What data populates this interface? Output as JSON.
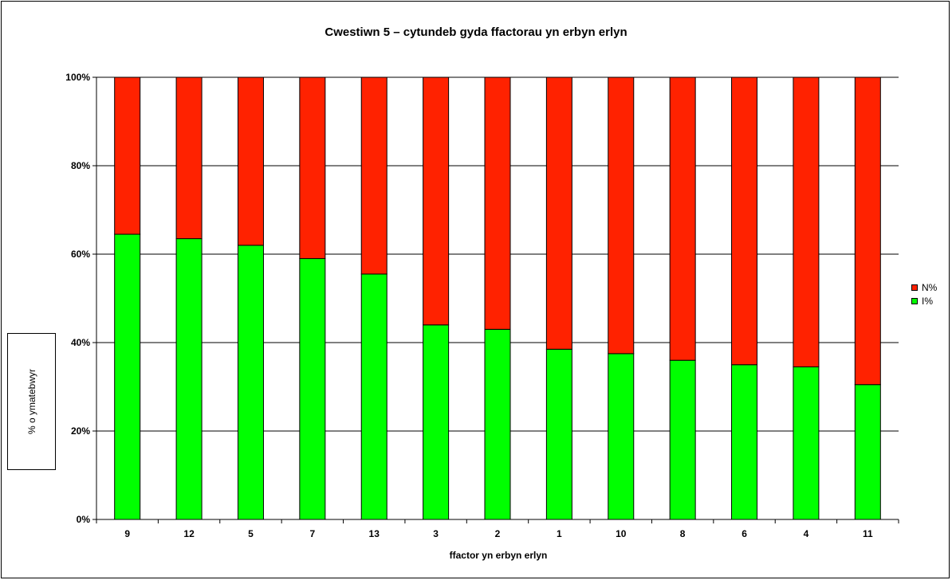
{
  "chart_data": {
    "type": "bar",
    "stacked": true,
    "percent": true,
    "title": "Cwestiwn 5 – cytundeb gyda ffactorau yn erbyn erlyn",
    "xlabel": "ffactor yn erbyn erlyn",
    "ylabel": "% o ymatebwyr",
    "categories": [
      "9",
      "12",
      "5",
      "7",
      "13",
      "3",
      "2",
      "1",
      "10",
      "8",
      "6",
      "4",
      "11"
    ],
    "ylim": [
      0,
      100
    ],
    "yticks": [
      "0%",
      "20%",
      "40%",
      "60%",
      "80%",
      "100%"
    ],
    "grid": true,
    "legend_position": "right",
    "series": [
      {
        "name": "I%",
        "color": "#00ff00",
        "values": [
          64.5,
          63.5,
          62,
          59,
          55.5,
          44,
          43,
          38.5,
          37.5,
          36,
          35,
          34.5,
          30.5
        ]
      },
      {
        "name": "N%",
        "color": "#ff2200",
        "values": [
          35.5,
          36.5,
          38,
          41,
          44.5,
          56,
          57,
          61.5,
          62.5,
          64,
          65,
          65.5,
          69.5
        ]
      }
    ]
  }
}
